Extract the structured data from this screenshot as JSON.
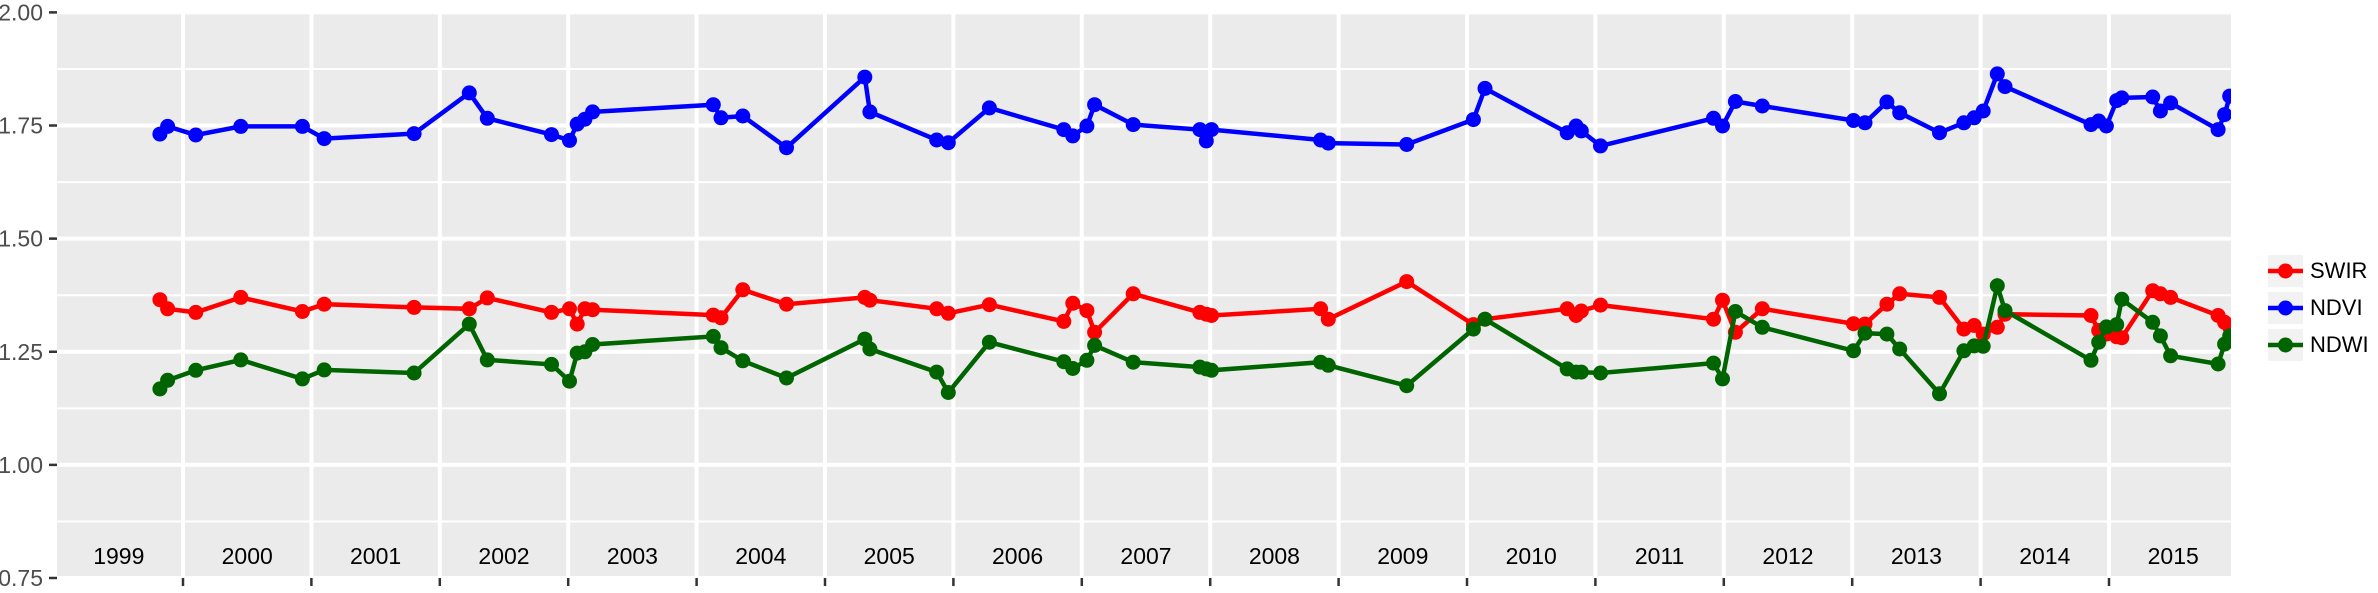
{
  "figure": {
    "background": "#FFFFFF",
    "panel_background": "#EBEBEB",
    "grid_color": "#FFFFFF",
    "y_axis_text_color": "#4D4D4D",
    "x_axis_text_color": "#000000",
    "tick_mark_color": "#333333"
  },
  "chart_data": {
    "type": "line",
    "title": "",
    "xlabel": "",
    "ylabel": "",
    "grid": true,
    "legend_position": "right",
    "x_axis": {
      "tick_years": [
        2000,
        2001,
        2002,
        2003,
        2004,
        2005,
        2006,
        2007,
        2008,
        2009,
        2010,
        2011,
        2012,
        2013,
        2014,
        2015
      ],
      "label_years": [
        "1999",
        "2000",
        "2001",
        "2002",
        "2003",
        "2004",
        "2005",
        "2006",
        "2007",
        "2008",
        "2009",
        "2010",
        "2011",
        "2012",
        "2013",
        "2014",
        "2015"
      ],
      "range": [
        1999.02,
        2015.95
      ]
    },
    "y_axis": {
      "ticks": [
        0.75,
        1.0,
        1.25,
        1.5,
        1.75,
        2.0
      ],
      "tick_labels": [
        "0.75",
        "1.00",
        "1.25",
        "1.50",
        "1.75",
        "2.00"
      ],
      "minor_ticks": [
        0.875,
        1.125,
        1.375,
        1.625,
        1.875
      ],
      "range": [
        0.74,
        2.0
      ]
    },
    "x": [
      1999.82,
      1999.88,
      2000.1,
      2000.45,
      2000.93,
      2001.1,
      2001.8,
      2002.23,
      2002.37,
      2002.87,
      2003.01,
      2003.07,
      2003.13,
      2003.19,
      2004.13,
      2004.19,
      2004.36,
      2004.7,
      2005.31,
      2005.35,
      2005.87,
      2005.96,
      2006.28,
      2006.86,
      2006.93,
      2007.04,
      2007.1,
      2007.4,
      2007.92,
      2007.97,
      2008.01,
      2008.86,
      2008.92,
      2009.53,
      2010.05,
      2010.14,
      2010.78,
      2010.85,
      2010.89,
      2011.04,
      2011.92,
      2011.99,
      2012.09,
      2012.3,
      2013.01,
      2013.1,
      2013.27,
      2013.37,
      2013.68,
      2013.87,
      2013.95,
      2014.02,
      2014.13,
      2014.19,
      2014.86,
      2014.92,
      2014.98,
      2015.06,
      2015.1,
      2015.34,
      2015.4,
      2015.48,
      2015.85,
      2015.9,
      2015.94
    ],
    "series": [
      {
        "name": "SWIR",
        "color": "#FF0000",
        "values": [
          1.365,
          1.345,
          1.337,
          1.37,
          1.339,
          1.355,
          1.348,
          1.345,
          1.369,
          1.337,
          1.345,
          1.311,
          1.345,
          1.343,
          1.331,
          1.325,
          1.387,
          1.355,
          1.37,
          1.364,
          1.345,
          1.335,
          1.354,
          1.317,
          1.357,
          1.341,
          1.293,
          1.378,
          1.337,
          1.333,
          1.33,
          1.345,
          1.322,
          1.405,
          1.31,
          1.322,
          1.345,
          1.33,
          1.34,
          1.353,
          1.322,
          1.364,
          1.293,
          1.345,
          1.312,
          1.311,
          1.355,
          1.378,
          1.37,
          1.3,
          1.308,
          1.289,
          1.304,
          1.333,
          1.33,
          1.297,
          1.289,
          1.283,
          1.281,
          1.385,
          1.378,
          1.37,
          1.33,
          1.315,
          1.304
        ]
      },
      {
        "name": "NDVI",
        "color": "#0000FF",
        "values": [
          1.731,
          1.748,
          1.729,
          1.748,
          1.748,
          1.721,
          1.732,
          1.822,
          1.766,
          1.73,
          1.717,
          1.753,
          1.764,
          1.78,
          1.796,
          1.767,
          1.771,
          1.701,
          1.857,
          1.78,
          1.718,
          1.712,
          1.789,
          1.741,
          1.727,
          1.749,
          1.796,
          1.752,
          1.741,
          1.716,
          1.741,
          1.718,
          1.711,
          1.708,
          1.763,
          1.832,
          1.734,
          1.749,
          1.738,
          1.705,
          1.766,
          1.749,
          1.803,
          1.793,
          1.761,
          1.756,
          1.802,
          1.778,
          1.734,
          1.756,
          1.767,
          1.782,
          1.864,
          1.836,
          1.752,
          1.76,
          1.749,
          1.805,
          1.811,
          1.813,
          1.782,
          1.8,
          1.741,
          1.774,
          1.815
        ]
      },
      {
        "name": "NDWI",
        "color": "#006400",
        "values": [
          1.168,
          1.187,
          1.209,
          1.232,
          1.19,
          1.21,
          1.203,
          1.311,
          1.232,
          1.222,
          1.185,
          1.247,
          1.25,
          1.266,
          1.284,
          1.259,
          1.23,
          1.192,
          1.278,
          1.256,
          1.205,
          1.16,
          1.271,
          1.228,
          1.213,
          1.231,
          1.264,
          1.227,
          1.216,
          1.212,
          1.209,
          1.227,
          1.22,
          1.175,
          1.3,
          1.322,
          1.212,
          1.205,
          1.205,
          1.203,
          1.225,
          1.19,
          1.339,
          1.304,
          1.252,
          1.291,
          1.289,
          1.256,
          1.157,
          1.252,
          1.263,
          1.262,
          1.396,
          1.341,
          1.231,
          1.271,
          1.305,
          1.31,
          1.366,
          1.315,
          1.285,
          1.241,
          1.223,
          1.267,
          1.285
        ]
      }
    ]
  }
}
